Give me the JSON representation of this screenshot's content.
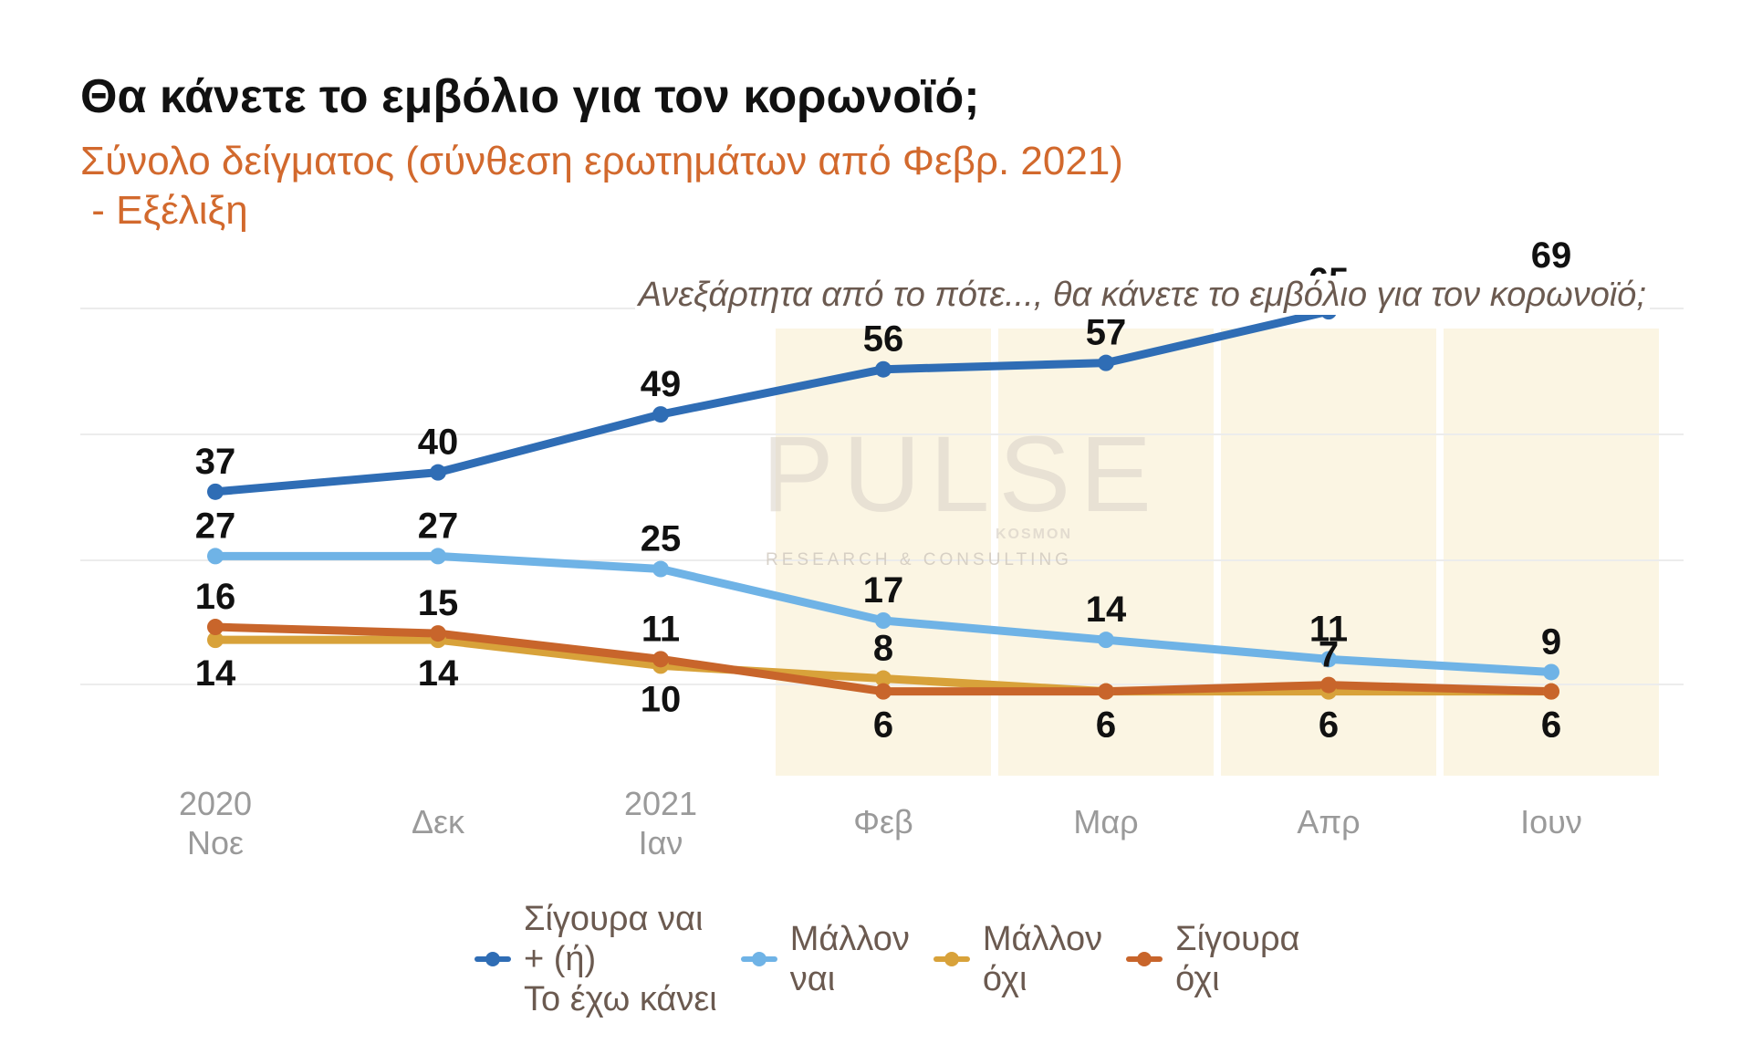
{
  "header": {
    "title": "Θα κάνετε το εμβόλιο για τον κορωνοϊό;",
    "subtitle_line1": "Σύνολο δείγματος (σύνθεση ερωτημάτων από Φεβρ. 2021)",
    "subtitle_line2": " - Εξέλιξη"
  },
  "watermark": {
    "main": "PULSE",
    "small": "KOSMON",
    "sub": "RESEARCH & CONSULTING"
  },
  "chart_data": {
    "type": "line",
    "title": "Θα κάνετε το εμβόλιο για τον κορωνοϊό;",
    "subtitle": "Σύνολο δείγματος (σύνθεση ερωτημάτων από Φεβρ. 2021) - Εξέλιξη",
    "annotation": "Ανεξάρτητα από το πότε..., θα κάνετε το εμβόλιο για τον κορωνοϊό;",
    "categories": [
      {
        "year": "2020",
        "label": "Νοε"
      },
      {
        "year": "",
        "label": "Δεκ"
      },
      {
        "year": "2021",
        "label": "Ιαν"
      },
      {
        "year": "",
        "label": "Φεβ"
      },
      {
        "year": "",
        "label": "Μαρ"
      },
      {
        "year": "",
        "label": "Απρ"
      },
      {
        "year": "",
        "label": "Ιουν"
      }
    ],
    "highlighted_categories": [
      "Φεβ",
      "Μαρ",
      "Απρ",
      "Ιουν"
    ],
    "ylim": [
      0,
      75
    ],
    "grid": true,
    "legend_position": "bottom",
    "series": [
      {
        "name": "Σίγουρα ναι + (ή) Το έχω κάνει",
        "legend_lines": [
          "Σίγουρα ναι",
          "+ (ή)",
          "Το έχω κάνει"
        ],
        "color": "#2f6db5",
        "values": [
          37,
          40,
          49,
          56,
          57,
          65,
          69
        ],
        "label_side": [
          "above",
          "above",
          "above",
          "above",
          "above",
          "above",
          "above"
        ]
      },
      {
        "name": "Μάλλον ναι",
        "legend_lines": [
          "Μάλλον",
          "ναι"
        ],
        "color": "#6fb3e6",
        "values": [
          27,
          27,
          25,
          17,
          14,
          11,
          9
        ],
        "label_side": [
          "above",
          "above",
          "above",
          "above",
          "above",
          "above",
          "above"
        ]
      },
      {
        "name": "Μάλλον όχι",
        "legend_lines": [
          "Μάλλον",
          "όχι"
        ],
        "color": "#d8a23a",
        "values": [
          14,
          14,
          10,
          8,
          6,
          6,
          6
        ],
        "label_side": [
          "below",
          "below",
          "below",
          "above",
          "below",
          "below",
          "below"
        ]
      },
      {
        "name": "Σίγουρα όχι",
        "legend_lines": [
          "Σίγουρα",
          "όχι"
        ],
        "color": "#c8652b",
        "values": [
          16,
          15,
          11,
          6,
          6,
          7,
          6
        ],
        "label_side": [
          "above",
          "above",
          "above",
          "below",
          "below",
          "above",
          "below"
        ]
      }
    ]
  }
}
